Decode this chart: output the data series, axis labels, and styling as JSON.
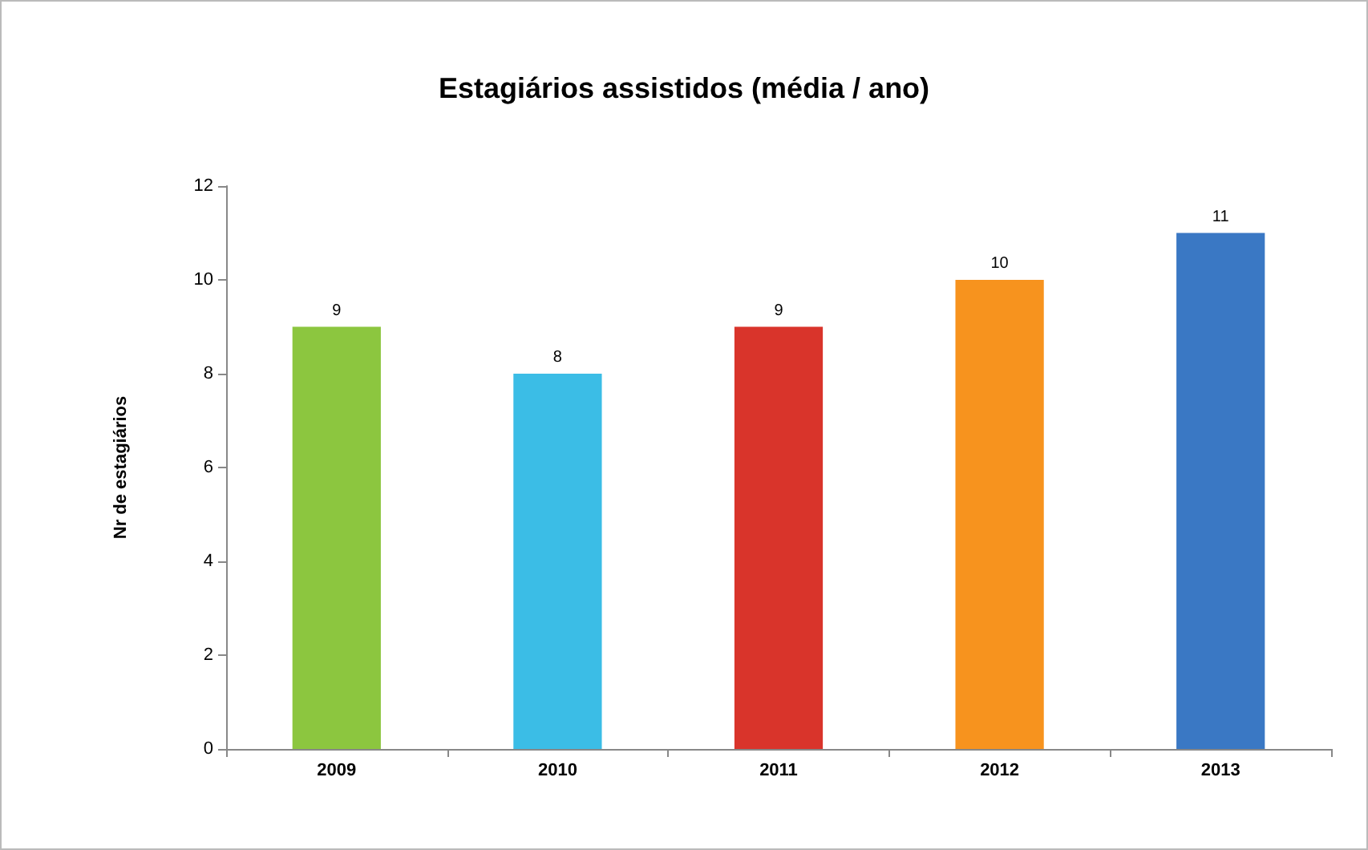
{
  "chart_data": {
    "type": "bar",
    "title": "Estagiários assistidos (média / ano)",
    "ylabel": "Nr de estagiários",
    "categories": [
      "2009",
      "2010",
      "2011",
      "2012",
      "2013"
    ],
    "values": [
      9,
      8,
      9,
      10,
      11
    ],
    "colors": [
      "#8cc63f",
      "#3bbde6",
      "#d9342b",
      "#f7931e",
      "#3a78c4"
    ],
    "ylim": [
      0,
      12
    ],
    "yticks": [
      0,
      2,
      4,
      6,
      8,
      10,
      12
    ],
    "grid": false,
    "data_labels": true
  }
}
